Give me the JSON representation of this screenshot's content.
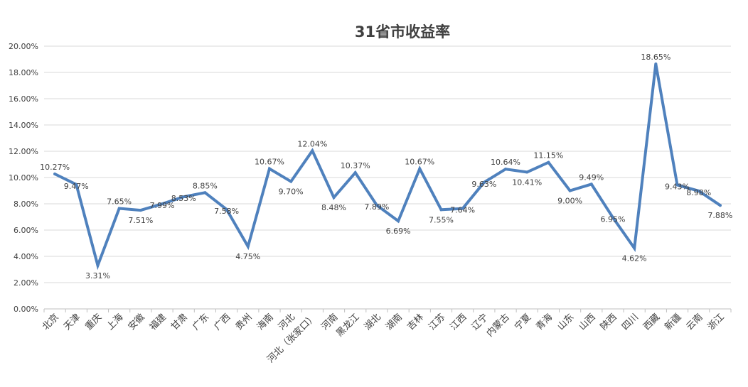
{
  "chart_data": {
    "type": "line",
    "title": "31省市收益率",
    "xlabel": "",
    "ylabel": "",
    "ylim": [
      0,
      20
    ],
    "yticks": [
      "0.00%",
      "2.00%",
      "4.00%",
      "6.00%",
      "8.00%",
      "10.00%",
      "12.00%",
      "14.00%",
      "16.00%",
      "18.00%",
      "20.00%"
    ],
    "grid": true,
    "legend": "none",
    "categories": [
      "北京",
      "天津",
      "重庆",
      "上海",
      "安徽",
      "福建",
      "甘肃",
      "广东",
      "广西",
      "贵州",
      "海南",
      "河北",
      "河北（张家口）",
      "河南",
      "黑龙江",
      "湖北",
      "湖南",
      "吉林",
      "江苏",
      "江西",
      "辽宁",
      "内蒙古",
      "宁夏",
      "青海",
      "山东",
      "山西",
      "陕西",
      "四川",
      "西藏",
      "新疆",
      "云南",
      "浙江"
    ],
    "values": [
      10.27,
      9.47,
      3.31,
      7.65,
      7.51,
      7.99,
      8.53,
      8.85,
      7.58,
      4.75,
      10.67,
      9.7,
      12.04,
      8.48,
      10.37,
      7.89,
      6.69,
      10.67,
      7.55,
      7.64,
      9.63,
      10.64,
      10.41,
      11.15,
      9.0,
      9.49,
      6.95,
      4.62,
      18.65,
      9.43,
      8.98,
      7.88
    ],
    "data_labels": [
      "10.27%",
      "9.47%",
      "3.31%",
      "7.65%",
      "7.51%",
      "7.99%",
      "8.53%",
      "8.85%",
      "7.58%",
      "4.75%",
      "10.67%",
      "9.70%",
      "12.04%",
      "8.48%",
      "10.37%",
      "7.89%",
      "6.69%",
      "10.67%",
      "7.55%",
      "7.64%",
      "9.63%",
      "10.64%",
      "10.41%",
      "11.15%",
      "9.00%",
      "9.49%",
      "6.95%",
      "4.62%",
      "18.65%",
      "9.43%",
      "8.98%",
      "7.88%"
    ],
    "colors": {
      "line": "#4f81bd",
      "grid": "#d9d9d9",
      "axis": "#bfbfbf",
      "text": "#404040",
      "title": "#404040"
    }
  }
}
